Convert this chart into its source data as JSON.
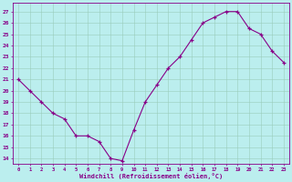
{
  "x": [
    0,
    1,
    2,
    3,
    4,
    5,
    6,
    7,
    8,
    9,
    10,
    11,
    12,
    13,
    14,
    15,
    16,
    17,
    18,
    19,
    20,
    21,
    22,
    23
  ],
  "y": [
    21,
    20,
    19,
    18,
    17.5,
    16,
    16,
    15.5,
    14,
    13.8,
    16.5,
    19,
    20.5,
    22,
    23,
    24.5,
    26,
    26.5,
    27,
    27,
    25.5,
    25,
    23.5,
    22.5
  ],
  "line_color": "#880088",
  "marker": "+",
  "marker_color": "#880088",
  "bg_color": "#bbeeee",
  "grid_color": "#99ccbb",
  "xlabel": "Windchill (Refroidissement éolien,°C)",
  "xlabel_color": "#880088",
  "ylabel_ticks": [
    14,
    15,
    16,
    17,
    18,
    19,
    20,
    21,
    22,
    23,
    24,
    25,
    26,
    27
  ],
  "ylim": [
    13.5,
    27.8
  ],
  "xlim": [
    -0.5,
    23.5
  ],
  "xtick_labels": [
    "0",
    "1",
    "2",
    "3",
    "4",
    "5",
    "6",
    "7",
    "8",
    "9",
    "10",
    "11",
    "12",
    "13",
    "14",
    "15",
    "16",
    "17",
    "18",
    "19",
    "20",
    "21",
    "22",
    "23"
  ],
  "tick_color": "#880088",
  "spine_color": "#880088",
  "title_color": "#880088",
  "figsize": [
    3.2,
    2.0
  ],
  "dpi": 100
}
